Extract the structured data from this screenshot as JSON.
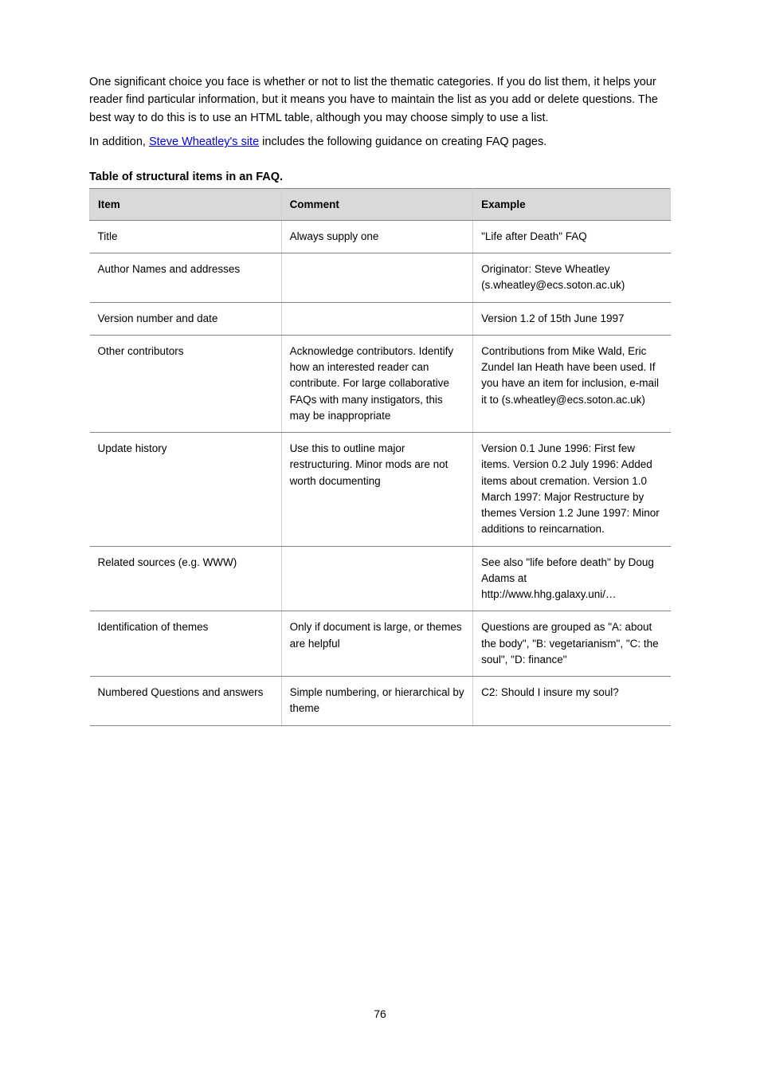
{
  "intro": {
    "p1": "One significant choice you face is whether or not to list the thematic categories. If you do list them, it helps your reader find particular information, but it means you have to maintain the list as you add or delete questions. The best way to do this is to use an HTML table, although you may choose simply to use a list.",
    "link_prefix": "In addition, ",
    "link_text": "Steve Wheatley's site",
    "link_suffix": " includes the following guidance on creating FAQ pages."
  },
  "table": {
    "title": "Table of structural items in an FAQ.",
    "columns": [
      "Item",
      "Comment",
      "Example"
    ],
    "col_widths_pct": [
      33,
      33,
      34
    ],
    "header_bg": "#d9d9d9",
    "border_color": "#808080",
    "sep_color": "#cfcfcf",
    "fontsize": 13.5,
    "rows": [
      [
        "Title",
        "Always supply one",
        "\"Life after Death\" FAQ"
      ],
      [
        "Author Names and addresses",
        "",
        "Originator: Steve Wheatley (s.wheatley@ecs.soton.ac.uk)"
      ],
      [
        "Version number and date",
        "",
        "Version 1.2 of 15th June 1997"
      ],
      [
        "Other contributors",
        "Acknowledge contributors. Identify how an interested reader can contribute. For large collaborative FAQs with many instigators, this may be inappropriate",
        "Contributions from Mike Wald, Eric Zundel Ian Heath have been used. If you have an item for inclusion, e-mail it to (s.wheatley@ecs.soton.ac.uk)"
      ],
      [
        "Update history",
        "Use this to outline major restructuring. Minor mods are not worth documenting",
        "Version 0.1 June 1996: First few items. Version 0.2 July 1996: Added items about cremation. Version 1.0 March 1997: Major Restructure by themes Version 1.2 June 1997: Minor additions to reincarnation."
      ],
      [
        "Related sources (e.g. WWW)",
        "",
        "See also \"life before death\" by Doug Adams at http://www.hhg.galaxy.uni/…"
      ],
      [
        "Identification of themes",
        "Only if document is large, or themes are helpful",
        "Questions are grouped as \"A: about the body\", \"B: vegetarianism\", \"C: the soul\", \"D: finance\""
      ],
      [
        "Numbered Questions and answers",
        "Simple numbering, or hierarchical by theme",
        "C2: Should I insure my soul?"
      ]
    ]
  },
  "footer": "76"
}
